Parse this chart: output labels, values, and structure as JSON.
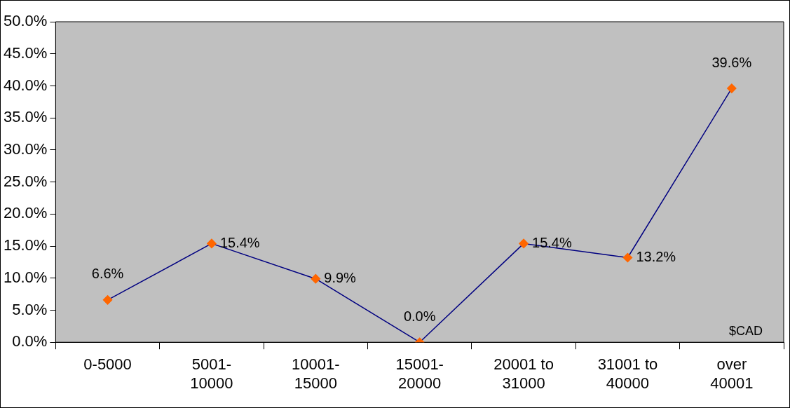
{
  "chart_data": {
    "type": "line",
    "categories": [
      "0-5000",
      "5001-\n10000",
      "10001-\n15000",
      "15001-\n20000",
      "20001 to\n31000",
      "31001 to\n40000",
      "over\n40001"
    ],
    "series": [
      {
        "color": "#000080",
        "colors": [
          "#ff6600",
          "#ff6600",
          "#ff6600",
          "#ff6600",
          "#ff6600",
          "#ff6600",
          "#ff6600"
        ],
        "values": [
          6.6,
          15.4,
          9.9,
          0.0,
          15.4,
          13.2,
          39.6
        ],
        "value_labels": [
          "6.6%",
          "15.4%",
          "9.9%",
          "0.0%",
          "15.4%",
          "13.2%",
          "39.6%"
        ]
      }
    ],
    "marker": "diamond",
    "line_style": "solid",
    "ylim": [
      0,
      50
    ],
    "yticks": [
      {
        "value": 0,
        "label": "0.0%"
      },
      {
        "value": 5,
        "label": "5.0%"
      },
      {
        "value": 10,
        "label": "10.0%"
      },
      {
        "value": 15,
        "label": "15.0%"
      },
      {
        "value": 20,
        "label": "20.0%"
      },
      {
        "value": 25,
        "label": "25.0%"
      },
      {
        "value": 30,
        "label": "30.0%"
      },
      {
        "value": 35,
        "label": "35.0%"
      },
      {
        "value": 40,
        "label": "40.0%"
      },
      {
        "value": 45,
        "label": "45.0%"
      },
      {
        "value": 50,
        "label": "50.0%"
      }
    ],
    "grid": false,
    "legend": false,
    "annotations": [
      "$CAD"
    ]
  }
}
